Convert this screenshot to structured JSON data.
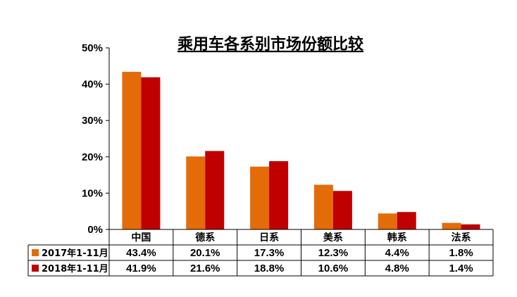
{
  "chart_data": {
    "type": "bar",
    "title": "乘用车各系别市场份额比较",
    "categories": [
      "中国",
      "德系",
      "日系",
      "美系",
      "韩系",
      "法系"
    ],
    "series": [
      {
        "name": "2017年1-11月",
        "color": "#E36C09",
        "values": [
          43.4,
          20.1,
          17.3,
          12.3,
          4.4,
          1.8
        ],
        "labels": [
          "43.4%",
          "20.1%",
          "17.3%",
          "12.3%",
          "4.4%",
          "1.8%"
        ]
      },
      {
        "name": "2018年1-11月",
        "color": "#C00000",
        "values": [
          41.9,
          21.6,
          18.8,
          10.6,
          4.8,
          1.4
        ],
        "labels": [
          "41.9%",
          "21.6%",
          "18.8%",
          "10.6%",
          "4.8%",
          "1.4%"
        ]
      }
    ],
    "ylim": [
      0,
      50
    ],
    "yticks": [
      0,
      10,
      20,
      30,
      40,
      50
    ],
    "ytick_labels": [
      "0%",
      "10%",
      "20%",
      "30%",
      "40%",
      "50%"
    ],
    "grid": false,
    "legend": "data-table-left"
  }
}
